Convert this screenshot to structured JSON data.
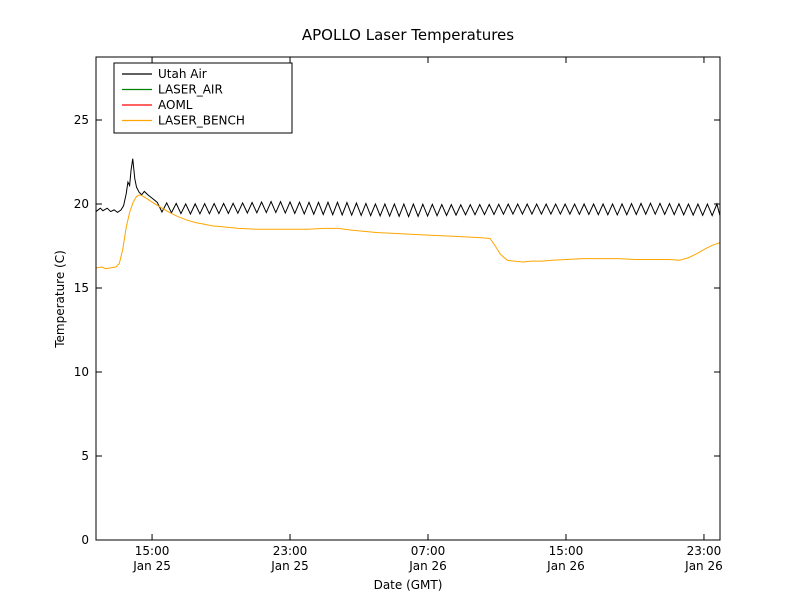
{
  "chart_data": {
    "type": "line",
    "title": "APOLLO Laser Temperatures",
    "xlabel": "Date (GMT)",
    "ylabel": "Temperature (C)",
    "x_unit": "hours since Jan 25 00:00 GMT",
    "xlim": [
      11.75,
      47.93
    ],
    "ylim": [
      0,
      28.75
    ],
    "grid": false,
    "yticks": [
      0,
      5,
      10,
      15,
      20,
      25
    ],
    "xticks": [
      {
        "x": 15,
        "time": "15:00",
        "date": "Jan 25"
      },
      {
        "x": 23,
        "time": "23:00",
        "date": "Jan 25"
      },
      {
        "x": 31,
        "time": "07:00",
        "date": "Jan 26"
      },
      {
        "x": 39,
        "time": "15:00",
        "date": "Jan 26"
      },
      {
        "x": 47,
        "time": "23:00",
        "date": "Jan 26"
      }
    ],
    "legend": {
      "position": "upper left",
      "entries": [
        "Utah Air",
        "LASER_AIR",
        "AOML",
        "LASER_BENCH"
      ]
    },
    "series": [
      {
        "name": "Utah Air",
        "color": "#000000",
        "style": "sawtooth",
        "pre_points": [
          [
            11.75,
            19.55
          ],
          [
            12.0,
            19.75
          ],
          [
            12.15,
            19.6
          ],
          [
            12.4,
            19.75
          ],
          [
            12.6,
            19.55
          ],
          [
            12.8,
            19.65
          ],
          [
            13.0,
            19.5
          ],
          [
            13.2,
            19.65
          ],
          [
            13.35,
            19.9
          ],
          [
            13.5,
            20.6
          ],
          [
            13.6,
            21.3
          ],
          [
            13.7,
            21.1
          ],
          [
            13.78,
            22.0
          ],
          [
            13.88,
            22.7
          ],
          [
            13.95,
            22.0
          ],
          [
            14.0,
            21.5
          ],
          [
            14.1,
            21.0
          ],
          [
            14.25,
            20.7
          ],
          [
            14.4,
            20.55
          ],
          [
            14.55,
            20.75
          ],
          [
            14.75,
            20.55
          ],
          [
            15.0,
            20.35
          ],
          [
            15.3,
            20.1
          ]
        ],
        "sawtooth": {
          "start": 15.3,
          "end": 47.93,
          "period": 0.55,
          "high_envelope": [
            [
              15.3,
              20.1
            ],
            [
              17,
              20.0
            ],
            [
              20,
              20.05
            ],
            [
              22,
              20.15
            ],
            [
              24,
              20.1
            ],
            [
              26,
              20.1
            ],
            [
              28,
              20.0
            ],
            [
              30,
              20.0
            ],
            [
              33,
              19.95
            ],
            [
              36,
              20.0
            ],
            [
              39,
              20.0
            ],
            [
              42,
              20.0
            ],
            [
              44,
              20.05
            ],
            [
              46,
              20.0
            ],
            [
              47.93,
              20.0
            ]
          ],
          "low_envelope": [
            [
              15.3,
              19.55
            ],
            [
              17,
              19.4
            ],
            [
              20,
              19.45
            ],
            [
              22,
              19.5
            ],
            [
              24,
              19.4
            ],
            [
              26,
              19.35
            ],
            [
              28,
              19.3
            ],
            [
              30,
              19.25
            ],
            [
              33,
              19.35
            ],
            [
              36,
              19.4
            ],
            [
              39,
              19.4
            ],
            [
              42,
              19.35
            ],
            [
              44,
              19.4
            ],
            [
              46,
              19.35
            ],
            [
              47.93,
              19.3
            ]
          ]
        }
      },
      {
        "name": "LASER_AIR",
        "color": "#008000",
        "style": "line",
        "visible_in_plot": false,
        "points": []
      },
      {
        "name": "AOML",
        "color": "#ff0000",
        "style": "line",
        "visible_in_plot": false,
        "points": []
      },
      {
        "name": "LASER_BENCH",
        "color": "#ffa500",
        "style": "line",
        "points": [
          [
            11.75,
            16.2
          ],
          [
            12.1,
            16.25
          ],
          [
            12.3,
            16.15
          ],
          [
            12.6,
            16.2
          ],
          [
            12.9,
            16.25
          ],
          [
            13.1,
            16.45
          ],
          [
            13.3,
            17.3
          ],
          [
            13.5,
            18.6
          ],
          [
            13.7,
            19.5
          ],
          [
            13.9,
            20.1
          ],
          [
            14.1,
            20.45
          ],
          [
            14.3,
            20.55
          ],
          [
            14.5,
            20.45
          ],
          [
            14.8,
            20.25
          ],
          [
            15.1,
            20.05
          ],
          [
            15.5,
            19.8
          ],
          [
            16.0,
            19.5
          ],
          [
            16.5,
            19.25
          ],
          [
            17.0,
            19.05
          ],
          [
            17.5,
            18.9
          ],
          [
            18.0,
            18.8
          ],
          [
            18.5,
            18.7
          ],
          [
            19.0,
            18.65
          ],
          [
            20.0,
            18.55
          ],
          [
            21.0,
            18.5
          ],
          [
            22.0,
            18.5
          ],
          [
            23.0,
            18.5
          ],
          [
            24.0,
            18.5
          ],
          [
            25.0,
            18.55
          ],
          [
            25.8,
            18.55
          ],
          [
            26.5,
            18.45
          ],
          [
            27.0,
            18.4
          ],
          [
            28.0,
            18.3
          ],
          [
            29.0,
            18.25
          ],
          [
            30.0,
            18.2
          ],
          [
            31.0,
            18.15
          ],
          [
            32.0,
            18.1
          ],
          [
            33.0,
            18.05
          ],
          [
            34.0,
            18.0
          ],
          [
            34.6,
            17.95
          ],
          [
            34.9,
            17.5
          ],
          [
            35.2,
            17.0
          ],
          [
            35.6,
            16.65
          ],
          [
            36.0,
            16.6
          ],
          [
            36.5,
            16.55
          ],
          [
            37.0,
            16.6
          ],
          [
            37.6,
            16.6
          ],
          [
            38.2,
            16.65
          ],
          [
            39.0,
            16.7
          ],
          [
            40.0,
            16.75
          ],
          [
            41.0,
            16.75
          ],
          [
            42.0,
            16.75
          ],
          [
            43.0,
            16.7
          ],
          [
            44.0,
            16.7
          ],
          [
            45.0,
            16.7
          ],
          [
            45.6,
            16.65
          ],
          [
            46.1,
            16.8
          ],
          [
            46.6,
            17.05
          ],
          [
            47.1,
            17.35
          ],
          [
            47.5,
            17.55
          ],
          [
            47.93,
            17.7
          ]
        ]
      }
    ]
  }
}
